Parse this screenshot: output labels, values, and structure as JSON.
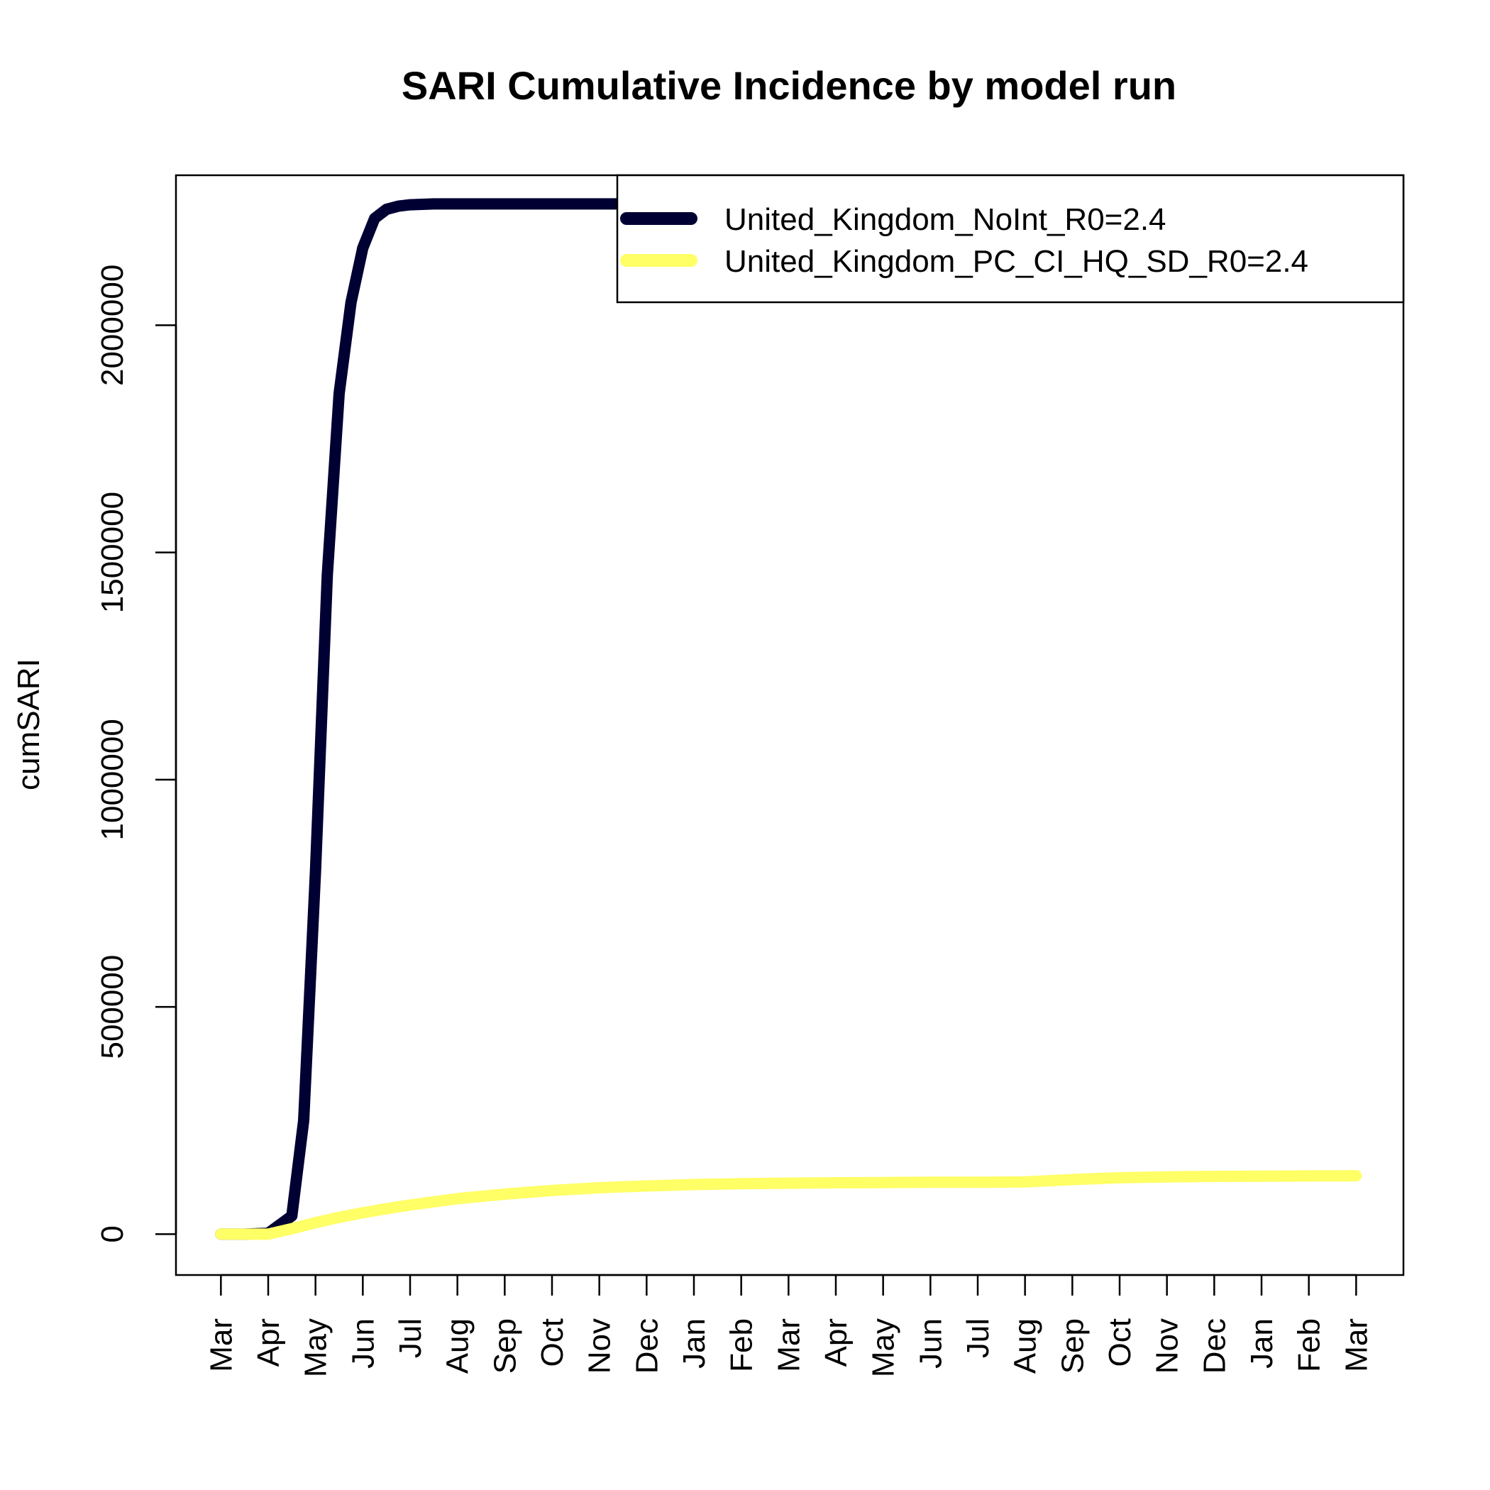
{
  "chart_data": {
    "type": "line",
    "title": "SARI Cumulative Incidence by model run",
    "xlabel": "",
    "ylabel": "cumSARI",
    "x_ticks": [
      "Mar",
      "Apr",
      "May",
      "Jun",
      "Jul",
      "Aug",
      "Sep",
      "Oct",
      "Nov",
      "Dec",
      "Jan",
      "Feb",
      "Mar",
      "Apr",
      "May",
      "Jun",
      "Jul",
      "Aug",
      "Sep",
      "Oct",
      "Nov",
      "Dec",
      "Jan",
      "Feb",
      "Mar"
    ],
    "y_ticks": [
      0,
      500000,
      1000000,
      1500000,
      2000000
    ],
    "y_tick_labels": [
      "0",
      "500000",
      "1000000",
      "1500000",
      "2000000"
    ],
    "xlim": [
      -0.95,
      25.0
    ],
    "ylim": [
      -90000,
      2330000
    ],
    "grid": false,
    "legend_position": "top-right",
    "series": [
      {
        "name": "United_Kingdom_NoInt_R0=2.4",
        "color": "#000033",
        "x": [
          0,
          0.5,
          1,
          1.5,
          1.75,
          2,
          2.25,
          2.5,
          2.75,
          3,
          3.25,
          3.5,
          3.75,
          4,
          4.25,
          4.5,
          5,
          6,
          7,
          8,
          9
        ],
        "y": [
          0,
          0,
          2000,
          40000,
          250000,
          800000,
          1450000,
          1850000,
          2050000,
          2170000,
          2235000,
          2255000,
          2262000,
          2265000,
          2266000,
          2267000,
          2267000,
          2267000,
          2267000,
          2267000,
          2267000
        ]
      },
      {
        "name": "United_Kingdom_PC_CI_HQ_SD_R0=2.4",
        "color": "#ffff66",
        "x": [
          0,
          0.5,
          1,
          1.5,
          2,
          2.5,
          3,
          3.5,
          4,
          5,
          6,
          7,
          8,
          9,
          10,
          11,
          12,
          13,
          14,
          15,
          16,
          17,
          18,
          19,
          20,
          21,
          22,
          23,
          24
        ],
        "y": [
          0,
          0,
          0,
          12000,
          25000,
          37000,
          47000,
          56000,
          64000,
          78000,
          88000,
          96000,
          102000,
          106000,
          109000,
          111000,
          112000,
          113000,
          113500,
          114000,
          114000,
          115000,
          120000,
          124000,
          126000,
          127000,
          127500,
          128000,
          128500
        ]
      }
    ]
  }
}
